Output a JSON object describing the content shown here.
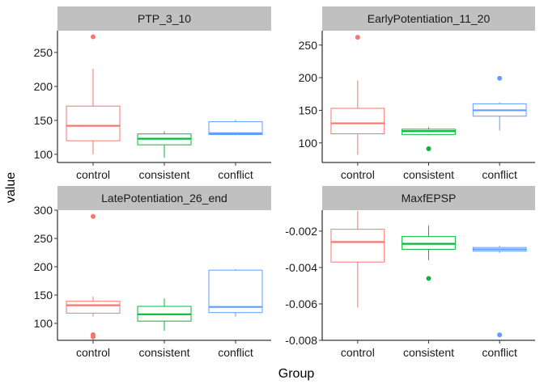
{
  "chart_data": {
    "type": "boxplot-facets",
    "xlabel": "Group",
    "ylabel": "value",
    "categories": [
      "control",
      "consistent",
      "conflict"
    ],
    "colors": {
      "control": "#F8766D",
      "consistent": "#00BA38",
      "conflict": "#619CFF"
    },
    "strip_color": "#C0C0C0",
    "grid": false,
    "panels": [
      {
        "title": "PTP_3_10",
        "ylim": [
          88,
          282
        ],
        "yticks": [
          100,
          150,
          200,
          250
        ],
        "ytick_labels": [
          "100",
          "150",
          "200",
          "250"
        ],
        "boxes": [
          {
            "group": "control",
            "lower": 100,
            "q1": 120,
            "median": 142,
            "q3": 171,
            "upper": 226,
            "outliers": [
              273
            ]
          },
          {
            "group": "consistent",
            "lower": 95,
            "q1": 114,
            "median": 123,
            "q3": 130,
            "upper": 134,
            "outliers": []
          },
          {
            "group": "conflict",
            "lower": 128,
            "q1": 129,
            "median": 131,
            "q3": 148,
            "upper": 151,
            "outliers": []
          }
        ]
      },
      {
        "title": "EarlyPotentiation_11_20",
        "ylim": [
          70,
          272
        ],
        "yticks": [
          100,
          150,
          200,
          250
        ],
        "ytick_labels": [
          "100",
          "150",
          "200",
          "250"
        ],
        "boxes": [
          {
            "group": "control",
            "lower": 82,
            "q1": 114,
            "median": 130,
            "q3": 153,
            "upper": 196,
            "outliers": [
              262
            ]
          },
          {
            "group": "consistent",
            "lower": 112,
            "q1": 113,
            "median": 118,
            "q3": 121,
            "upper": 124,
            "outliers": [
              91
            ]
          },
          {
            "group": "conflict",
            "lower": 119,
            "q1": 141,
            "median": 150,
            "q3": 160,
            "upper": 162,
            "outliers": [
              199
            ]
          }
        ]
      },
      {
        "title": "LatePotentiation_26_end",
        "ylim": [
          70,
          300
        ],
        "yticks": [
          100,
          150,
          200,
          250,
          300
        ],
        "ytick_labels": [
          "100",
          "150",
          "200",
          "250",
          "300"
        ],
        "boxes": [
          {
            "group": "control",
            "lower": 112,
            "q1": 118,
            "median": 132,
            "q3": 139,
            "upper": 147,
            "outliers": [
              289,
              76,
              78,
              80
            ]
          },
          {
            "group": "consistent",
            "lower": 87,
            "q1": 104,
            "median": 116,
            "q3": 130,
            "upper": 144,
            "outliers": []
          },
          {
            "group": "conflict",
            "lower": 112,
            "q1": 119,
            "median": 129,
            "q3": 194,
            "upper": 196,
            "outliers": []
          }
        ]
      },
      {
        "title": "MaxfEPSP",
        "ylim": [
          -0.008,
          -0.00085
        ],
        "yticks": [
          -0.002,
          -0.004,
          -0.006,
          -0.008
        ],
        "ytick_labels": [
          "-0.002",
          "-0.004",
          "-0.006",
          "-0.008"
        ],
        "boxes": [
          {
            "group": "control",
            "lower": -0.0062,
            "q1": -0.0037,
            "median": -0.0026,
            "q3": -0.0019,
            "upper": -0.0009,
            "outliers": []
          },
          {
            "group": "consistent",
            "lower": -0.0036,
            "q1": -0.003,
            "median": -0.0027,
            "q3": -0.0023,
            "upper": -0.0017,
            "outliers": [
              -0.0046
            ]
          },
          {
            "group": "conflict",
            "lower": -0.0032,
            "q1": -0.0031,
            "median": -0.003,
            "q3": -0.0029,
            "upper": -0.0028,
            "outliers": [
              -0.0077
            ]
          }
        ]
      }
    ]
  }
}
